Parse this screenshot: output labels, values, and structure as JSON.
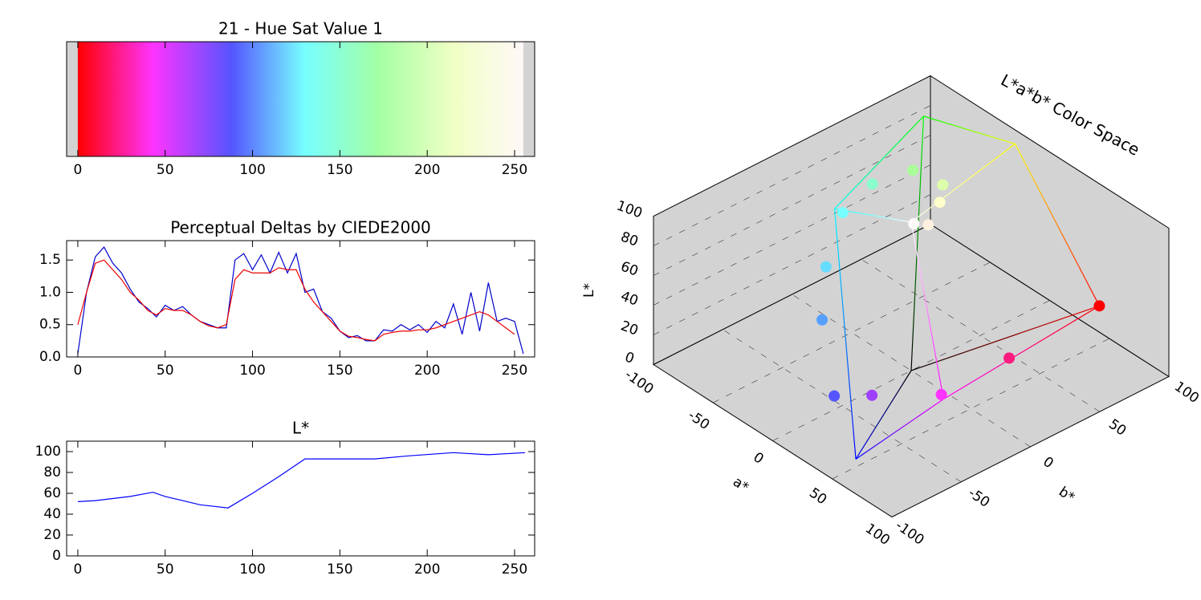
{
  "chart_data": [
    {
      "type": "colorbar",
      "title": "21 - Hue Sat Value 1",
      "xlim": [
        -6.4,
        261.5
      ],
      "xticks": [
        0,
        50,
        100,
        150,
        200,
        250
      ],
      "stops": [
        0,
        43,
        88,
        130,
        172,
        215,
        255
      ],
      "colors": [
        "#ff0000",
        "#ff33ff",
        "#5555ff",
        "#77ffff",
        "#a4ffa4",
        "#f0ffc4",
        "#fff8f8"
      ]
    },
    {
      "type": "line",
      "title": "Perceptual Deltas by CIEDE2000",
      "xlim": [
        -6.4,
        261.5
      ],
      "xticks": [
        0,
        50,
        100,
        150,
        200,
        250
      ],
      "ylim": [
        0,
        1.8
      ],
      "yticks": [
        {
          "value": 0,
          "label": "0.0"
        },
        0.5,
        {
          "value": 1,
          "label": "1.0"
        },
        1.5
      ],
      "x": [
        0,
        5,
        10,
        15,
        20,
        25,
        30,
        35,
        40,
        45,
        50,
        55,
        60,
        65,
        70,
        75,
        80,
        85,
        90,
        95,
        100,
        105,
        110,
        115,
        120,
        125,
        130,
        135,
        140,
        145,
        150,
        155,
        160,
        165,
        170,
        175,
        180,
        185,
        190,
        195,
        200,
        205,
        210,
        215,
        220,
        225,
        230,
        235,
        240,
        245,
        250,
        255
      ],
      "series": [
        {
          "color": "#0000cc",
          "values": [
            0.05,
            1.0,
            1.55,
            1.7,
            1.45,
            1.3,
            1.05,
            0.85,
            0.75,
            0.62,
            0.8,
            0.72,
            0.78,
            0.65,
            0.55,
            0.5,
            0.45,
            0.45,
            1.5,
            1.6,
            1.35,
            1.58,
            1.3,
            1.62,
            1.3,
            1.6,
            1.0,
            1.05,
            0.7,
            0.6,
            0.4,
            0.3,
            0.33,
            0.25,
            0.25,
            0.42,
            0.4,
            0.5,
            0.42,
            0.5,
            0.38,
            0.55,
            0.45,
            0.82,
            0.35,
            1.0,
            0.4,
            1.15,
            0.55,
            0.6,
            0.55,
            0.05
          ]
        },
        {
          "color": "#ee0000",
          "values": [
            0.5,
            1.0,
            1.45,
            1.5,
            1.35,
            1.2,
            1.0,
            0.88,
            0.72,
            0.65,
            0.75,
            0.72,
            0.72,
            0.65,
            0.55,
            0.48,
            0.45,
            0.5,
            1.2,
            1.35,
            1.3,
            1.3,
            1.3,
            1.38,
            1.35,
            1.35,
            1.05,
            0.85,
            0.7,
            0.55,
            0.4,
            0.32,
            0.3,
            0.27,
            0.25,
            0.35,
            0.38,
            0.4,
            0.4,
            0.42,
            0.42,
            0.45,
            0.5,
            0.55,
            0.6,
            0.65,
            0.7,
            0.65,
            0.55,
            0.45,
            0.35,
            null
          ]
        }
      ]
    },
    {
      "type": "line",
      "title": "L*",
      "xlim": [
        -6.4,
        261.5
      ],
      "xticks": [
        0,
        50,
        100,
        150,
        200,
        250
      ],
      "ylim": [
        0,
        110
      ],
      "yticks": [
        0,
        20,
        40,
        60,
        80,
        100
      ],
      "x": [
        0,
        10,
        20,
        30,
        43,
        50,
        60,
        70,
        86,
        100,
        115,
        130,
        150,
        170,
        190,
        215,
        235,
        256
      ],
      "series": [
        {
          "color": "#0000ff",
          "values": [
            52,
            53,
            55,
            57,
            61,
            57,
            53,
            49,
            46,
            60,
            76,
            93,
            93,
            93,
            96,
            99,
            97,
            99
          ]
        }
      ]
    },
    {
      "type": "scatter3d",
      "title": "L*a*b* Color Space",
      "xlabel": "a*",
      "ylabel": "b*",
      "zlabel": "L*",
      "xlim": [
        -100,
        100
      ],
      "ylim": [
        -100,
        100
      ],
      "zlim": [
        0,
        100
      ],
      "xticks": [
        -100,
        -50,
        0,
        50,
        100
      ],
      "yticks": [
        -100,
        -50,
        0,
        50,
        100
      ],
      "zticks": [
        0,
        20,
        40,
        60,
        80,
        100
      ],
      "x": [
        80,
        88,
        95,
        60,
        40,
        -5,
        -25,
        -40,
        -50,
        -45,
        -20,
        -5,
        5,
        1
      ],
      "y": [
        67,
        -5,
        -60,
        -80,
        -90,
        -60,
        -40,
        -15,
        15,
        40,
        40,
        25,
        8,
        1
      ],
      "z": [
        53,
        56,
        61,
        52,
        46,
        60,
        76,
        93,
        93,
        93,
        96,
        99,
        97,
        99
      ],
      "colors": [
        "#ff0000",
        "#ff1a80",
        "#ff33ff",
        "#a040ff",
        "#5555ff",
        "#55a0ff",
        "#66ddff",
        "#77ffff",
        "#88ffcc",
        "#aaff99",
        "#ddffaa",
        "#ffffcc",
        "#fff0e0",
        "#fffafa"
      ],
      "gamut": {
        "x": [
          0,
          80,
          -86,
          79,
          -22,
          -48,
          98,
          0
        ],
        "y": [
          0,
          67,
          83,
          -108,
          94,
          -14,
          -61,
          0
        ],
        "z": [
          0,
          53,
          88,
          32,
          97,
          91,
          60,
          100
        ],
        "colors": [
          "#000000",
          "#ff0000",
          "#00ff00",
          "#0000ff",
          "#ffff00",
          "#00ffff",
          "#ff00ff",
          "#ffffff"
        ]
      }
    }
  ]
}
